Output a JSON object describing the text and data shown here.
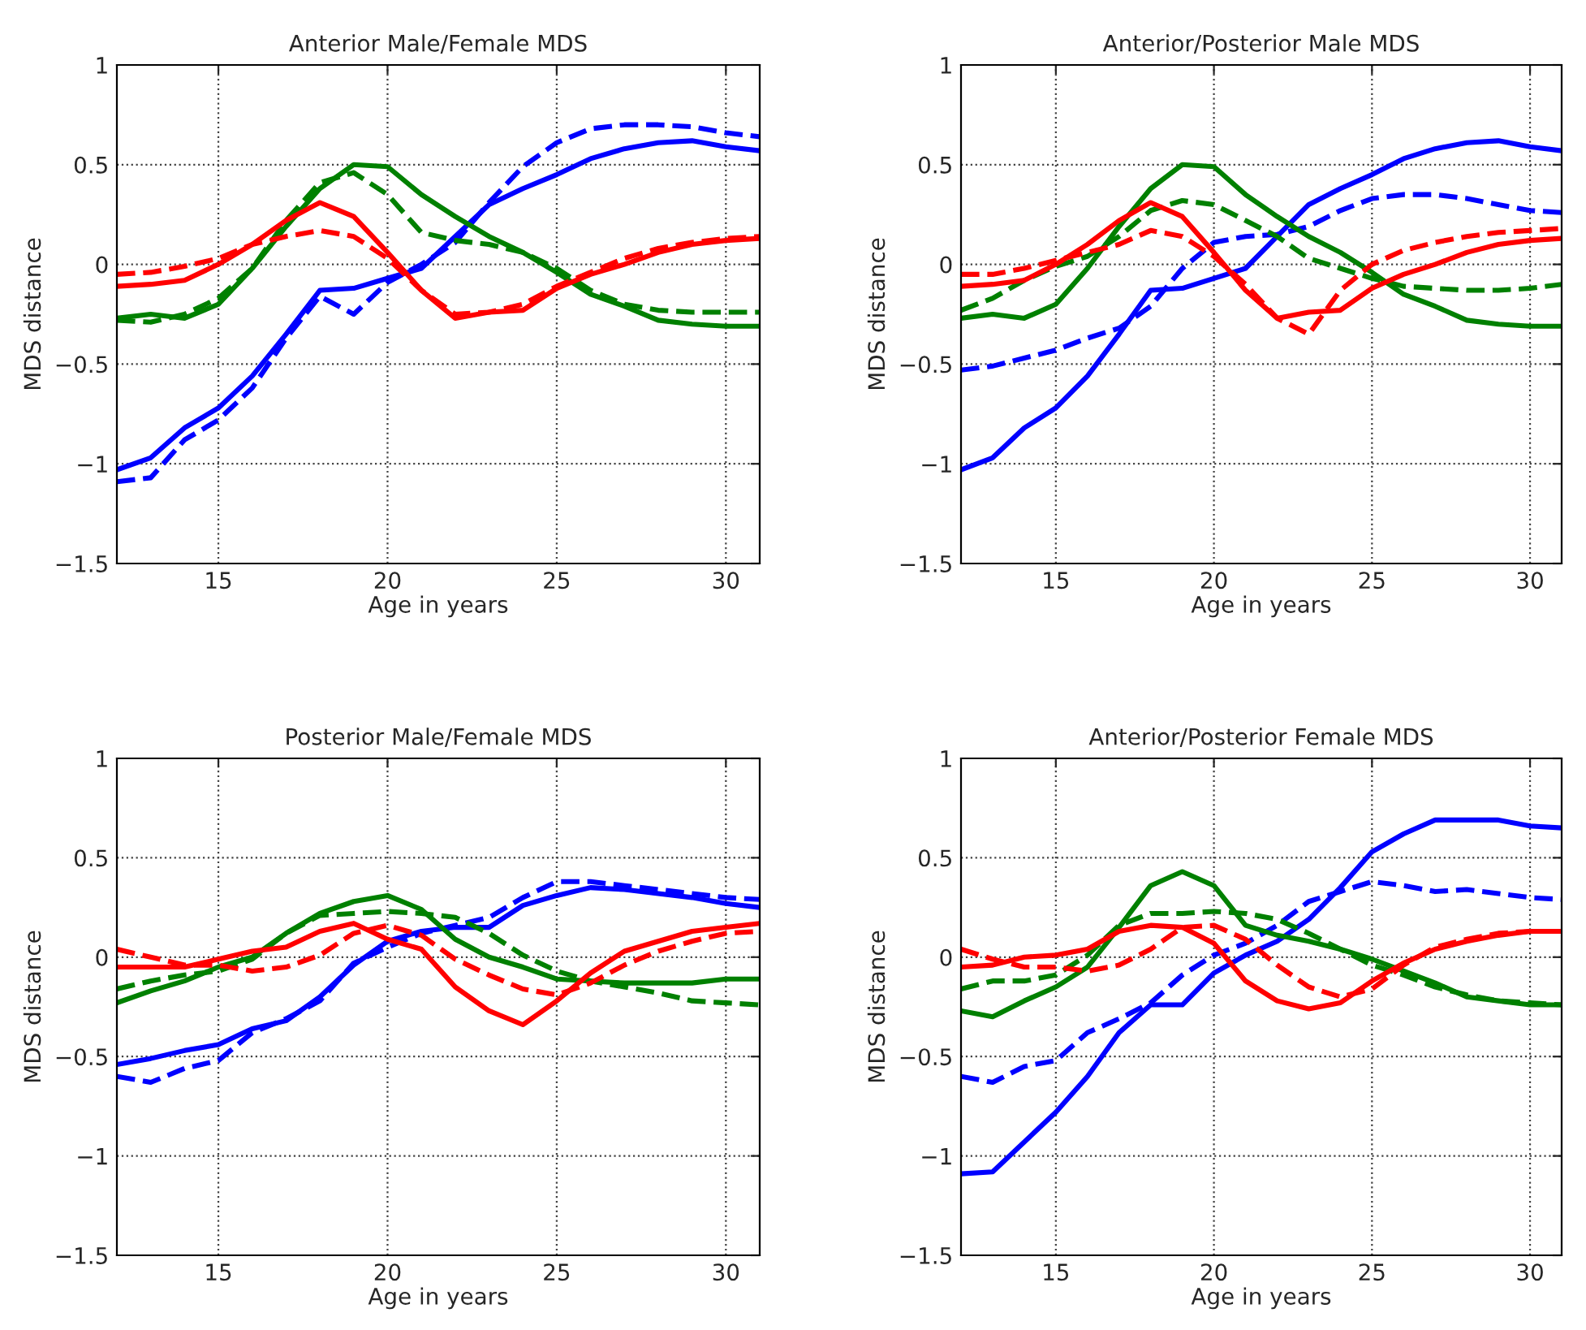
{
  "chart_data": [
    {
      "type": "line",
      "title": "Anterior Male/Female MDS",
      "xlabel": "Age in years",
      "ylabel": "MDS distance",
      "xlim": [
        12,
        31
      ],
      "ylim": [
        -1.5,
        1
      ],
      "xticks": [
        15,
        20,
        25,
        30
      ],
      "yticks": [
        -1.5,
        -1,
        -0.5,
        0,
        0.5,
        1
      ],
      "grid": true,
      "x": [
        12,
        13,
        14,
        15,
        16,
        17,
        18,
        19,
        20,
        21,
        22,
        23,
        24,
        25,
        26,
        27,
        28,
        29,
        30,
        31
      ],
      "series": [
        {
          "color": "#0000ff",
          "line_style": "solid",
          "values": [
            -1.03,
            -0.97,
            -0.82,
            -0.72,
            -0.56,
            -0.35,
            -0.13,
            -0.12,
            -0.07,
            -0.02,
            0.14,
            0.3,
            0.38,
            0.45,
            0.53,
            0.58,
            0.61,
            0.62,
            0.59,
            0.57
          ]
        },
        {
          "color": "#0000ff",
          "line_style": "dashed",
          "values": [
            -1.09,
            -1.07,
            -0.88,
            -0.78,
            -0.62,
            -0.37,
            -0.16,
            -0.25,
            -0.09,
            0,
            0.11,
            0.31,
            0.49,
            0.61,
            0.68,
            0.7,
            0.7,
            0.69,
            0.66,
            0.64
          ]
        },
        {
          "color": "#008000",
          "line_style": "solid",
          "values": [
            -0.27,
            -0.25,
            -0.27,
            -0.2,
            -0.02,
            0.19,
            0.38,
            0.5,
            0.49,
            0.35,
            0.24,
            0.14,
            0.06,
            -0.04,
            -0.15,
            -0.21,
            -0.28,
            -0.3,
            -0.31,
            -0.31
          ]
        },
        {
          "color": "#008000",
          "line_style": "dashed",
          "values": [
            -0.28,
            -0.29,
            -0.25,
            -0.17,
            -0.02,
            0.22,
            0.41,
            0.46,
            0.35,
            0.16,
            0.12,
            0.1,
            0.06,
            -0.02,
            -0.13,
            -0.2,
            -0.23,
            -0.24,
            -0.24,
            -0.24
          ]
        },
        {
          "color": "#ff0000",
          "line_style": "solid",
          "values": [
            -0.11,
            -0.1,
            -0.08,
            0,
            0.1,
            0.22,
            0.31,
            0.24,
            0.06,
            -0.13,
            -0.27,
            -0.24,
            -0.23,
            -0.12,
            -0.05,
            0,
            0.06,
            0.1,
            0.12,
            0.13
          ]
        },
        {
          "color": "#ff0000",
          "line_style": "dashed",
          "values": [
            -0.05,
            -0.04,
            -0.01,
            0.03,
            0.1,
            0.14,
            0.17,
            0.14,
            0.03,
            -0.13,
            -0.25,
            -0.24,
            -0.2,
            -0.11,
            -0.04,
            0.03,
            0.08,
            0.11,
            0.13,
            0.14
          ]
        }
      ]
    },
    {
      "type": "line",
      "title": "Anterior/Posterior Male MDS",
      "xlabel": "Age in years",
      "ylabel": "MDS distance",
      "xlim": [
        12,
        31
      ],
      "ylim": [
        -1.5,
        1
      ],
      "xticks": [
        15,
        20,
        25,
        30
      ],
      "yticks": [
        -1.5,
        -1,
        -0.5,
        0,
        0.5,
        1
      ],
      "grid": true,
      "x": [
        12,
        13,
        14,
        15,
        16,
        17,
        18,
        19,
        20,
        21,
        22,
        23,
        24,
        25,
        26,
        27,
        28,
        29,
        30,
        31
      ],
      "series": [
        {
          "color": "#0000ff",
          "line_style": "solid",
          "values": [
            -1.03,
            -0.97,
            -0.82,
            -0.72,
            -0.56,
            -0.35,
            -0.13,
            -0.12,
            -0.07,
            -0.02,
            0.14,
            0.3,
            0.38,
            0.45,
            0.53,
            0.58,
            0.61,
            0.62,
            0.59,
            0.57
          ]
        },
        {
          "color": "#0000ff",
          "line_style": "dashed",
          "values": [
            -0.53,
            -0.51,
            -0.47,
            -0.43,
            -0.37,
            -0.32,
            -0.21,
            -0.02,
            0.11,
            0.14,
            0.15,
            0.19,
            0.27,
            0.33,
            0.35,
            0.35,
            0.33,
            0.3,
            0.27,
            0.26
          ]
        },
        {
          "color": "#008000",
          "line_style": "solid",
          "values": [
            -0.27,
            -0.25,
            -0.27,
            -0.2,
            -0.02,
            0.19,
            0.38,
            0.5,
            0.49,
            0.35,
            0.24,
            0.14,
            0.06,
            -0.04,
            -0.15,
            -0.21,
            -0.28,
            -0.3,
            -0.31,
            -0.31
          ]
        },
        {
          "color": "#008000",
          "line_style": "dashed",
          "values": [
            -0.23,
            -0.17,
            -0.08,
            -0.01,
            0.04,
            0.14,
            0.27,
            0.32,
            0.3,
            0.22,
            0.14,
            0.03,
            -0.02,
            -0.07,
            -0.11,
            -0.12,
            -0.13,
            -0.13,
            -0.12,
            -0.1
          ]
        },
        {
          "color": "#ff0000",
          "line_style": "solid",
          "values": [
            -0.11,
            -0.1,
            -0.08,
            0,
            0.1,
            0.22,
            0.31,
            0.24,
            0.06,
            -0.13,
            -0.27,
            -0.24,
            -0.23,
            -0.12,
            -0.05,
            0,
            0.06,
            0.1,
            0.12,
            0.13
          ]
        },
        {
          "color": "#ff0000",
          "line_style": "dashed",
          "values": [
            -0.05,
            -0.05,
            -0.02,
            0.02,
            0.06,
            0.1,
            0.17,
            0.14,
            0.04,
            -0.1,
            -0.27,
            -0.35,
            -0.13,
            0,
            0.07,
            0.11,
            0.14,
            0.16,
            0.17,
            0.18
          ]
        }
      ]
    },
    {
      "type": "line",
      "title": "Posterior Male/Female MDS",
      "xlabel": "Age in years",
      "ylabel": "MDS distance",
      "xlim": [
        12,
        31
      ],
      "ylim": [
        -1.5,
        1
      ],
      "xticks": [
        15,
        20,
        25,
        30
      ],
      "yticks": [
        -1.5,
        -1,
        -0.5,
        0,
        0.5,
        1
      ],
      "grid": true,
      "x": [
        12,
        13,
        14,
        15,
        16,
        17,
        18,
        19,
        20,
        21,
        22,
        23,
        24,
        25,
        26,
        27,
        28,
        29,
        30,
        31
      ],
      "series": [
        {
          "color": "#0000ff",
          "line_style": "solid",
          "values": [
            -0.54,
            -0.51,
            -0.47,
            -0.44,
            -0.36,
            -0.32,
            -0.2,
            -0.04,
            0.08,
            0.13,
            0.15,
            0.15,
            0.26,
            0.31,
            0.35,
            0.34,
            0.32,
            0.3,
            0.27,
            0.25
          ]
        },
        {
          "color": "#0000ff",
          "line_style": "dashed",
          "values": [
            -0.6,
            -0.63,
            -0.56,
            -0.52,
            -0.38,
            -0.31,
            -0.22,
            -0.03,
            0.05,
            0.12,
            0.16,
            0.2,
            0.3,
            0.38,
            0.38,
            0.36,
            0.34,
            0.32,
            0.3,
            0.29
          ]
        },
        {
          "color": "#008000",
          "line_style": "solid",
          "values": [
            -0.23,
            -0.17,
            -0.12,
            -0.05,
            0,
            0.12,
            0.22,
            0.28,
            0.31,
            0.24,
            0.09,
            0,
            -0.05,
            -0.11,
            -0.12,
            -0.13,
            -0.13,
            -0.13,
            -0.11,
            -0.11
          ]
        },
        {
          "color": "#008000",
          "line_style": "dashed",
          "values": [
            -0.16,
            -0.12,
            -0.09,
            -0.07,
            -0.01,
            0.12,
            0.21,
            0.22,
            0.23,
            0.22,
            0.2,
            0.12,
            0.01,
            -0.07,
            -0.12,
            -0.15,
            -0.18,
            -0.22,
            -0.23,
            -0.24
          ]
        },
        {
          "color": "#ff0000",
          "line_style": "solid",
          "values": [
            -0.05,
            -0.05,
            -0.05,
            -0.01,
            0.03,
            0.05,
            0.13,
            0.17,
            0.09,
            0.04,
            -0.15,
            -0.27,
            -0.34,
            -0.22,
            -0.08,
            0.03,
            0.08,
            0.13,
            0.15,
            0.17
          ]
        },
        {
          "color": "#ff0000",
          "line_style": "dashed",
          "values": [
            0.04,
            0,
            -0.04,
            -0.04,
            -0.07,
            -0.05,
            0.01,
            0.12,
            0.16,
            0.11,
            -0.01,
            -0.09,
            -0.16,
            -0.19,
            -0.13,
            -0.04,
            0.03,
            0.08,
            0.12,
            0.13
          ]
        }
      ]
    },
    {
      "type": "line",
      "title": "Anterior/Posterior Female MDS",
      "xlabel": "Age in years",
      "ylabel": "MDS distance",
      "xlim": [
        12,
        31
      ],
      "ylim": [
        -1.5,
        1
      ],
      "xticks": [
        15,
        20,
        25,
        30
      ],
      "yticks": [
        -1.5,
        -1,
        -0.5,
        0,
        0.5,
        1
      ],
      "grid": true,
      "x": [
        12,
        13,
        14,
        15,
        16,
        17,
        18,
        19,
        20,
        21,
        22,
        23,
        24,
        25,
        26,
        27,
        28,
        29,
        30,
        31
      ],
      "series": [
        {
          "color": "#0000ff",
          "line_style": "solid",
          "values": [
            -1.09,
            -1.08,
            -0.93,
            -0.78,
            -0.6,
            -0.38,
            -0.24,
            -0.24,
            -0.08,
            0.01,
            0.08,
            0.19,
            0.35,
            0.53,
            0.62,
            0.69,
            0.69,
            0.69,
            0.66,
            0.65
          ]
        },
        {
          "color": "#0000ff",
          "line_style": "dashed",
          "values": [
            -0.6,
            -0.63,
            -0.55,
            -0.52,
            -0.38,
            -0.31,
            -0.23,
            -0.09,
            0.01,
            0.07,
            0.16,
            0.28,
            0.33,
            0.38,
            0.36,
            0.33,
            0.34,
            0.32,
            0.3,
            0.29
          ]
        },
        {
          "color": "#008000",
          "line_style": "solid",
          "values": [
            -0.27,
            -0.3,
            -0.22,
            -0.15,
            -0.05,
            0.15,
            0.36,
            0.43,
            0.36,
            0.16,
            0.11,
            0.08,
            0.04,
            -0.01,
            -0.07,
            -0.13,
            -0.2,
            -0.22,
            -0.24,
            -0.24
          ]
        },
        {
          "color": "#008000",
          "line_style": "dashed",
          "values": [
            -0.16,
            -0.12,
            -0.12,
            -0.09,
            0.01,
            0.16,
            0.22,
            0.22,
            0.23,
            0.22,
            0.19,
            0.12,
            0.04,
            -0.04,
            -0.09,
            -0.15,
            -0.19,
            -0.22,
            -0.23,
            -0.24
          ]
        },
        {
          "color": "#ff0000",
          "line_style": "solid",
          "values": [
            -0.05,
            -0.04,
            0,
            0.01,
            0.04,
            0.13,
            0.16,
            0.15,
            0.07,
            -0.12,
            -0.22,
            -0.26,
            -0.23,
            -0.12,
            -0.03,
            0.04,
            0.08,
            0.11,
            0.13,
            0.13
          ]
        },
        {
          "color": "#ff0000",
          "line_style": "dashed",
          "values": [
            0.04,
            -0.01,
            -0.05,
            -0.05,
            -0.07,
            -0.04,
            0.04,
            0.15,
            0.16,
            0.09,
            -0.04,
            -0.15,
            -0.2,
            -0.16,
            -0.04,
            0.05,
            0.09,
            0.12,
            0.13,
            0.13
          ]
        }
      ]
    }
  ]
}
